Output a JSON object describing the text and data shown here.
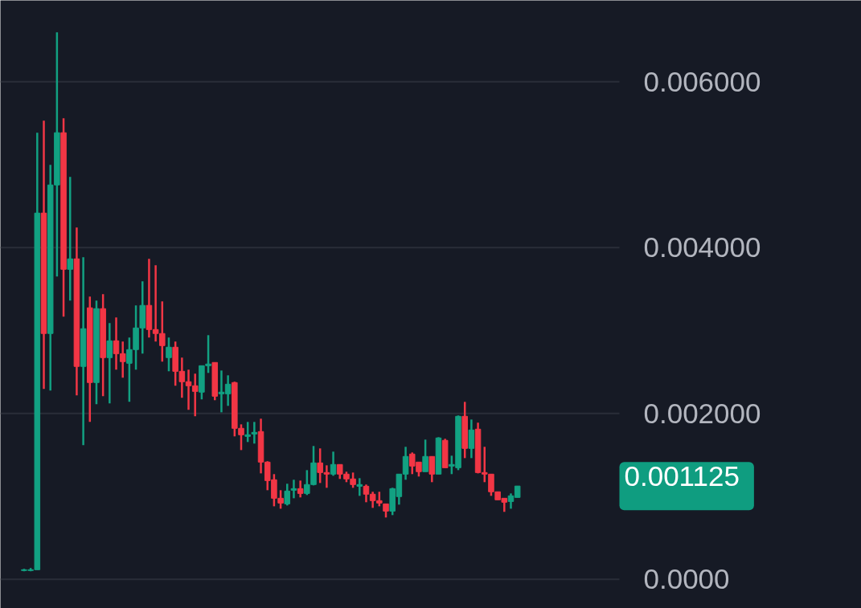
{
  "chart_data": {
    "type": "candlestick",
    "categories": [
      null,
      null,
      null,
      null,
      null,
      null,
      null,
      null,
      null,
      null,
      null,
      null,
      null,
      null,
      null,
      null,
      null,
      null,
      null,
      null,
      null,
      null,
      null,
      null,
      null,
      null,
      null,
      null,
      null,
      null,
      null,
      null,
      null,
      null,
      null,
      null,
      null,
      null,
      null,
      null,
      null,
      null,
      null,
      null,
      null,
      null,
      null,
      null,
      null,
      null,
      null,
      null,
      null,
      null,
      null,
      null,
      null,
      null,
      null,
      null,
      null,
      null,
      null,
      null,
      null,
      null,
      null,
      null,
      null,
      null,
      null,
      null,
      null,
      null,
      null,
      null
    ],
    "ohlc": [
      [
        0.000107,
        0.000126,
        9.7e-05,
        0.000116
      ],
      [
        0.000107,
        0.000136,
        9.7e-05,
        0.000116
      ],
      [
        0.000116,
        0.005385,
        0.000116,
        0.004416
      ],
      [
        0.004416,
        0.00553,
        0.002295,
        0.002964
      ],
      [
        0.002964,
        0.004997,
        0.002276,
        0.004755
      ],
      [
        0.004755,
        0.006595,
        0.003651,
        0.005385
      ],
      [
        0.005385,
        0.005559,
        0.003167,
        0.003738
      ],
      [
        0.003738,
        0.004852,
        0.003361,
        0.003864
      ],
      [
        0.003864,
        0.004242,
        0.002218,
        0.002567
      ],
      [
        0.002567,
        0.003884,
        0.001617,
        0.003022
      ],
      [
        0.003274,
        0.003409,
        0.001898,
        0.002373
      ],
      [
        0.002373,
        0.003361,
        0.002111,
        0.003264
      ],
      [
        0.003264,
        0.003438,
        0.002208,
        0.002673
      ],
      [
        0.002673,
        0.00309,
        0.002121,
        0.002876
      ],
      [
        0.002876,
        0.003157,
        0.002528,
        0.002721
      ],
      [
        0.002721,
        0.002867,
        0.002431,
        0.002625
      ],
      [
        0.002605,
        0.002915,
        0.00214,
        0.00277
      ],
      [
        0.00277,
        0.003303,
        0.002528,
        0.003031
      ],
      [
        0.003031,
        0.003593,
        0.002721,
        0.003303
      ],
      [
        0.003303,
        0.003864,
        0.002915,
        0.003012
      ],
      [
        0.003012,
        0.003787,
        0.002867,
        0.002964
      ],
      [
        0.002964,
        0.003351,
        0.002625,
        0.002818
      ],
      [
        0.002673,
        0.002915,
        0.002508,
        0.002799
      ],
      [
        0.002799,
        0.002867,
        0.002334,
        0.002508
      ],
      [
        0.002508,
        0.002673,
        0.002189,
        0.002383
      ],
      [
        0.002383,
        0.002528,
        0.002044,
        0.002334
      ],
      [
        0.002334,
        0.002479,
        0.001966,
        0.002266
      ],
      [
        0.002257,
        0.002576,
        0.002169,
        0.002576
      ],
      [
        0.002576,
        0.002944,
        0.002489,
        0.002596
      ],
      [
        0.002615,
        0.002615,
        0.00216,
        0.002208
      ],
      [
        0.002237,
        0.002518,
        0.002014,
        0.002257
      ],
      [
        0.002237,
        0.00246,
        0.002092,
        0.002353
      ],
      [
        0.002373,
        0.002383,
        0.001724,
        0.001821
      ],
      [
        0.001821,
        0.001869,
        0.001559,
        0.001743
      ],
      [
        0.001724,
        0.001898,
        0.001656,
        0.001743
      ],
      [
        0.001753,
        0.001898,
        0.001637,
        0.001772
      ],
      [
        0.001782,
        0.001937,
        0.001278,
        0.001414
      ],
      [
        0.001414,
        0.001424,
        0.001075,
        0.001191
      ],
      [
        0.001201,
        0.001269,
        0.000881,
        0.000978
      ],
      [
        0.000978,
        0.001075,
        0.000852,
        0.00092
      ],
      [
        0.00091,
        0.001153,
        0.000891,
        0.001065
      ],
      [
        0.001075,
        0.001201,
        0.000978,
        0.001094
      ],
      [
        0.001094,
        0.001191,
        0.000988,
        0.001036
      ],
      [
        0.001036,
        0.001317,
        0.001017,
        0.001143
      ],
      [
        0.001143,
        0.001608,
        0.001133,
        0.001404
      ],
      [
        0.001404,
        0.001579,
        0.001162,
        0.001288
      ],
      [
        0.001288,
        0.001375,
        0.001104,
        0.001269
      ],
      [
        0.001269,
        0.00154,
        0.001249,
        0.001385
      ],
      [
        0.001385,
        0.001385,
        0.001211,
        0.001269
      ],
      [
        0.001269,
        0.001298,
        0.001172,
        0.001211
      ],
      [
        0.001211,
        0.001288,
        0.001104,
        0.001143
      ],
      [
        0.001123,
        0.00122,
        0.001007,
        0.001143
      ],
      [
        0.001123,
        0.001143,
        0.00093,
        0.001027
      ],
      [
        0.001027,
        0.001056,
        0.000862,
        0.000949
      ],
      [
        0.000949,
        0.001056,
        0.000881,
        0.00092
      ],
      [
        0.00091,
        0.00091,
        0.000746,
        0.000823
      ],
      [
        0.000823,
        0.001104,
        0.000775,
        0.001094
      ],
      [
        0.000998,
        0.001269,
        0.000901,
        0.001269
      ],
      [
        0.001269,
        0.001598,
        0.001201,
        0.001482
      ],
      [
        0.001511,
        0.00153,
        0.001269,
        0.001366
      ],
      [
        0.001414,
        0.001414,
        0.00124,
        0.001298
      ],
      [
        0.001298,
        0.001685,
        0.001298,
        0.001482
      ],
      [
        0.001482,
        0.001482,
        0.001172,
        0.001269
      ],
      [
        0.001269,
        0.001714,
        0.001269,
        0.001705
      ],
      [
        0.001676,
        0.001695,
        0.001346,
        0.001346
      ],
      [
        0.001366,
        0.001491,
        0.001269,
        0.001385
      ],
      [
        0.001346,
        0.001976,
        0.001317,
        0.001966
      ],
      [
        0.001966,
        0.00214,
        0.001462,
        0.001579
      ],
      [
        0.001579,
        0.001927,
        0.001462,
        0.001801
      ],
      [
        0.001811,
        0.001889,
        0.001278,
        0.001288
      ],
      [
        0.001288,
        0.001598,
        0.001172,
        0.001269
      ],
      [
        0.001269,
        0.001269,
        0.001007,
        0.001056
      ],
      [
        0.001056,
        0.001056,
        0.000959,
        0.000959
      ],
      [
        0.000978,
        0.000978,
        0.000814,
        0.00093
      ],
      [
        0.000939,
        0.001036,
        0.000852,
        0.001007
      ],
      [
        0.000988,
        0.001125,
        0.000988,
        0.001125
      ]
    ],
    "colors": [
      "#12a182",
      "#12a182",
      "#12a182",
      "#f23645",
      "#12a182",
      "#12a182",
      "#f23645",
      "#12a182",
      "#f23645",
      "#12a182",
      "#f23645",
      "#12a182",
      "#f23645",
      "#12a182",
      "#f23645",
      "#f23645",
      "#12a182",
      "#12a182",
      "#12a182",
      "#f23645",
      "#f23645",
      "#f23645",
      "#12a182",
      "#f23645",
      "#f23645",
      "#f23645",
      "#f23645",
      "#12a182",
      "#12a182",
      "#f23645",
      "#12a182",
      "#12a182",
      "#f23645",
      "#f23645",
      "#12a182",
      "#12a182",
      "#f23645",
      "#f23645",
      "#f23645",
      "#f23645",
      "#12a182",
      "#12a182",
      "#f23645",
      "#12a182",
      "#12a182",
      "#f23645",
      "#f23645",
      "#12a182",
      "#f23645",
      "#f23645",
      "#f23645",
      "#12a182",
      "#f23645",
      "#f23645",
      "#f23645",
      "#f23645",
      "#12a182",
      "#12a182",
      "#12a182",
      "#f23645",
      "#f23645",
      "#12a182",
      "#f23645",
      "#12a182",
      "#f23645",
      "#12a182",
      "#12a182",
      "#f23645",
      "#12a182",
      "#f23645",
      "#f23645",
      "#f23645",
      "#f23645",
      "#f23645",
      "#12a182",
      "#12a182"
    ],
    "ylim": [
      -0.00035,
      0.00698
    ],
    "yticks": [
      {
        "value": 0,
        "label": "0.0000"
      },
      {
        "value": 0.002,
        "label": "0.002000"
      },
      {
        "value": 0.004,
        "label": "0.004000"
      },
      {
        "value": 0.006,
        "label": "0.006000"
      }
    ],
    "grid": "y",
    "tick_labels": "y",
    "annotations": [
      "0.001125"
    ]
  }
}
